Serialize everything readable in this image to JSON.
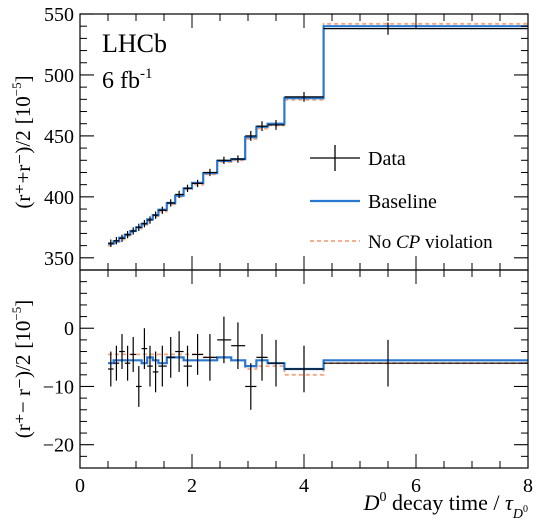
{
  "figure": {
    "experiment_label": "LHCb",
    "luminosity_label": "6 fb",
    "luminosity_sup": "-1"
  },
  "chart_data": [
    {
      "type": "line",
      "panel": "top",
      "ylabel": "(r⁺+r⁻)/2 [10⁻⁵]",
      "ylabel_parts": {
        "main": "(r⁺+r⁻)/2",
        "unit": "[10",
        "exp": "−5",
        "close": "]"
      },
      "ylim": [
        340,
        550
      ],
      "yticks": [
        350,
        400,
        450,
        500,
        550
      ],
      "xlim": [
        0,
        8
      ],
      "grid": false,
      "legend_position": "center-right",
      "legend": [
        {
          "label": "Data",
          "style": "errorbar",
          "color": "#000000"
        },
        {
          "label": "Baseline",
          "style": "solid",
          "color": "#2878d0"
        },
        {
          "label_pre": "No ",
          "label_em": "CP",
          "label_post": " violation",
          "style": "dashed",
          "color": "#f4a582"
        }
      ],
      "bin_edges": [
        0.5,
        0.6,
        0.7,
        0.8,
        0.9,
        1.0,
        1.1,
        1.2,
        1.3,
        1.4,
        1.55,
        1.7,
        1.85,
        2.0,
        2.2,
        2.45,
        2.7,
        2.95,
        3.15,
        3.35,
        3.65,
        4.35,
        8.0
      ],
      "series": [
        {
          "name": "Data",
          "kind": "points",
          "x": [
            0.55,
            0.65,
            0.75,
            0.85,
            0.95,
            1.05,
            1.15,
            1.25,
            1.35,
            1.47,
            1.62,
            1.77,
            1.92,
            2.1,
            2.32,
            2.57,
            2.82,
            3.05,
            3.25,
            3.5,
            4.0,
            5.5
          ],
          "y": [
            362,
            364,
            366,
            369,
            372,
            375,
            378,
            381,
            385,
            389,
            395,
            402,
            407,
            411,
            420,
            430,
            431,
            450,
            458,
            459,
            482,
            538
          ],
          "yerr": [
            3,
            3,
            3,
            3,
            3,
            3,
            3,
            3,
            3,
            3,
            3,
            3,
            3,
            3,
            3,
            3,
            3,
            4,
            4,
            4,
            4,
            5
          ]
        },
        {
          "name": "Baseline",
          "kind": "step",
          "y": [
            361.5,
            363.5,
            366.5,
            369,
            372,
            375,
            378,
            381.5,
            385,
            389.5,
            395,
            401,
            407,
            411.5,
            419.5,
            429.5,
            431,
            449,
            457.5,
            460,
            481,
            540
          ]
        },
        {
          "name": "No CP violation",
          "kind": "step",
          "y": [
            360,
            362,
            365,
            368,
            371,
            374,
            377,
            380.5,
            384,
            388,
            394,
            400,
            406,
            410,
            418.5,
            428.5,
            430,
            447.5,
            456,
            458.5,
            479.5,
            542
          ]
        }
      ]
    },
    {
      "type": "line",
      "panel": "bottom",
      "ylabel": "(r⁺−r⁻)/2 [10⁻⁵]",
      "ylabel_parts": {
        "main": "(r⁺− r⁻)/2",
        "unit": "[10",
        "exp": "−5",
        "close": "]"
      },
      "ylim": [
        -24,
        10
      ],
      "yticks": [
        -20,
        -10,
        0
      ],
      "xlim": [
        0,
        8
      ],
      "xticks": [
        0,
        2,
        4,
        6,
        8
      ],
      "xlabel_parts": {
        "pre": "D",
        "sup": "0",
        "mid": " decay time / ",
        "tau": "τ",
        "sub": "D",
        "subsup": "0"
      },
      "grid": false,
      "bin_edges": [
        0.5,
        0.6,
        0.7,
        0.8,
        0.9,
        1.0,
        1.1,
        1.2,
        1.3,
        1.4,
        1.55,
        1.7,
        1.85,
        2.0,
        2.2,
        2.45,
        2.7,
        2.95,
        3.15,
        3.35,
        3.65,
        4.35,
        8.0
      ],
      "series": [
        {
          "name": "Data",
          "kind": "points",
          "x": [
            0.55,
            0.65,
            0.75,
            0.85,
            0.95,
            1.05,
            1.15,
            1.25,
            1.35,
            1.47,
            1.62,
            1.77,
            1.92,
            2.1,
            2.32,
            2.57,
            2.82,
            3.05,
            3.25,
            3.5,
            4.0,
            5.5
          ],
          "y": [
            -7,
            -6,
            -4,
            -6,
            -4.5,
            -10,
            -3.5,
            -6.5,
            -7.5,
            -6.5,
            -5,
            -4,
            -6.5,
            -4.5,
            -5,
            -2,
            -3,
            -10,
            -5,
            -6,
            -7,
            -6
          ],
          "yerr": [
            3,
            3,
            3,
            3,
            3,
            3.5,
            3.5,
            3.5,
            3.5,
            3.5,
            3.5,
            3.5,
            3.5,
            3.5,
            4,
            4,
            4,
            4,
            4,
            4,
            4,
            4
          ]
        },
        {
          "name": "Baseline",
          "kind": "step",
          "y": [
            -6,
            -5.5,
            -5.5,
            -5.5,
            -5.5,
            -5.5,
            -6,
            -5,
            -5.5,
            -6,
            -5,
            -5,
            -5.5,
            -5.5,
            -5.5,
            -5,
            -5.5,
            -6.5,
            -5.5,
            -6,
            -7,
            -5.5
          ]
        },
        {
          "name": "No CP violation",
          "kind": "step",
          "y": [
            -4.5,
            -4.5,
            -4.5,
            -4.5,
            -4.5,
            -4.5,
            -4.5,
            -4.5,
            -4.5,
            -4.5,
            -4.5,
            -4.5,
            -4.5,
            -4.5,
            -5,
            -5,
            -5.5,
            -7,
            -6.5,
            -6.5,
            -8,
            -6
          ]
        }
      ]
    }
  ]
}
